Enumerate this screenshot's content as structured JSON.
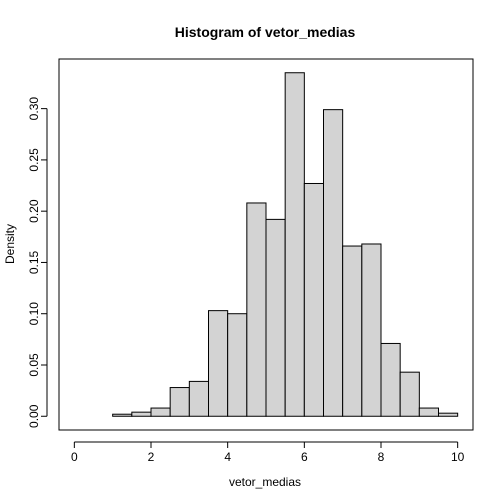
{
  "chart_data": {
    "type": "bar",
    "title": "Histogram of vetor_medias",
    "xlabel": "vetor_medias",
    "ylabel": "Density",
    "xlim": [
      -0.4,
      10.4
    ],
    "ylim": [
      -0.0134,
      0.3484
    ],
    "x_ticks": [
      0,
      2,
      4,
      6,
      8,
      10
    ],
    "y_ticks": [
      0.0,
      0.05,
      0.1,
      0.15,
      0.2,
      0.25,
      0.3
    ],
    "y_tick_labels": [
      "0.00",
      "0.05",
      "0.10",
      "0.15",
      "0.20",
      "0.25",
      "0.30"
    ],
    "bin_width": 0.5,
    "bins": [
      {
        "start": 1.0,
        "end": 1.5,
        "density": 0.002
      },
      {
        "start": 1.5,
        "end": 2.0,
        "density": 0.004
      },
      {
        "start": 2.0,
        "end": 2.5,
        "density": 0.008
      },
      {
        "start": 2.5,
        "end": 3.0,
        "density": 0.028
      },
      {
        "start": 3.0,
        "end": 3.5,
        "density": 0.034
      },
      {
        "start": 3.5,
        "end": 4.0,
        "density": 0.103
      },
      {
        "start": 4.0,
        "end": 4.5,
        "density": 0.1
      },
      {
        "start": 4.5,
        "end": 5.0,
        "density": 0.208
      },
      {
        "start": 5.0,
        "end": 5.5,
        "density": 0.192
      },
      {
        "start": 5.5,
        "end": 6.0,
        "density": 0.335
      },
      {
        "start": 6.0,
        "end": 6.5,
        "density": 0.227
      },
      {
        "start": 6.5,
        "end": 7.0,
        "density": 0.299
      },
      {
        "start": 7.0,
        "end": 7.5,
        "density": 0.166
      },
      {
        "start": 7.5,
        "end": 8.0,
        "density": 0.168
      },
      {
        "start": 8.0,
        "end": 8.5,
        "density": 0.071
      },
      {
        "start": 8.5,
        "end": 9.0,
        "density": 0.043
      },
      {
        "start": 9.0,
        "end": 9.5,
        "density": 0.008
      },
      {
        "start": 9.5,
        "end": 10.0,
        "density": 0.003
      }
    ],
    "bar_color": "#d3d3d3",
    "grid": false
  }
}
